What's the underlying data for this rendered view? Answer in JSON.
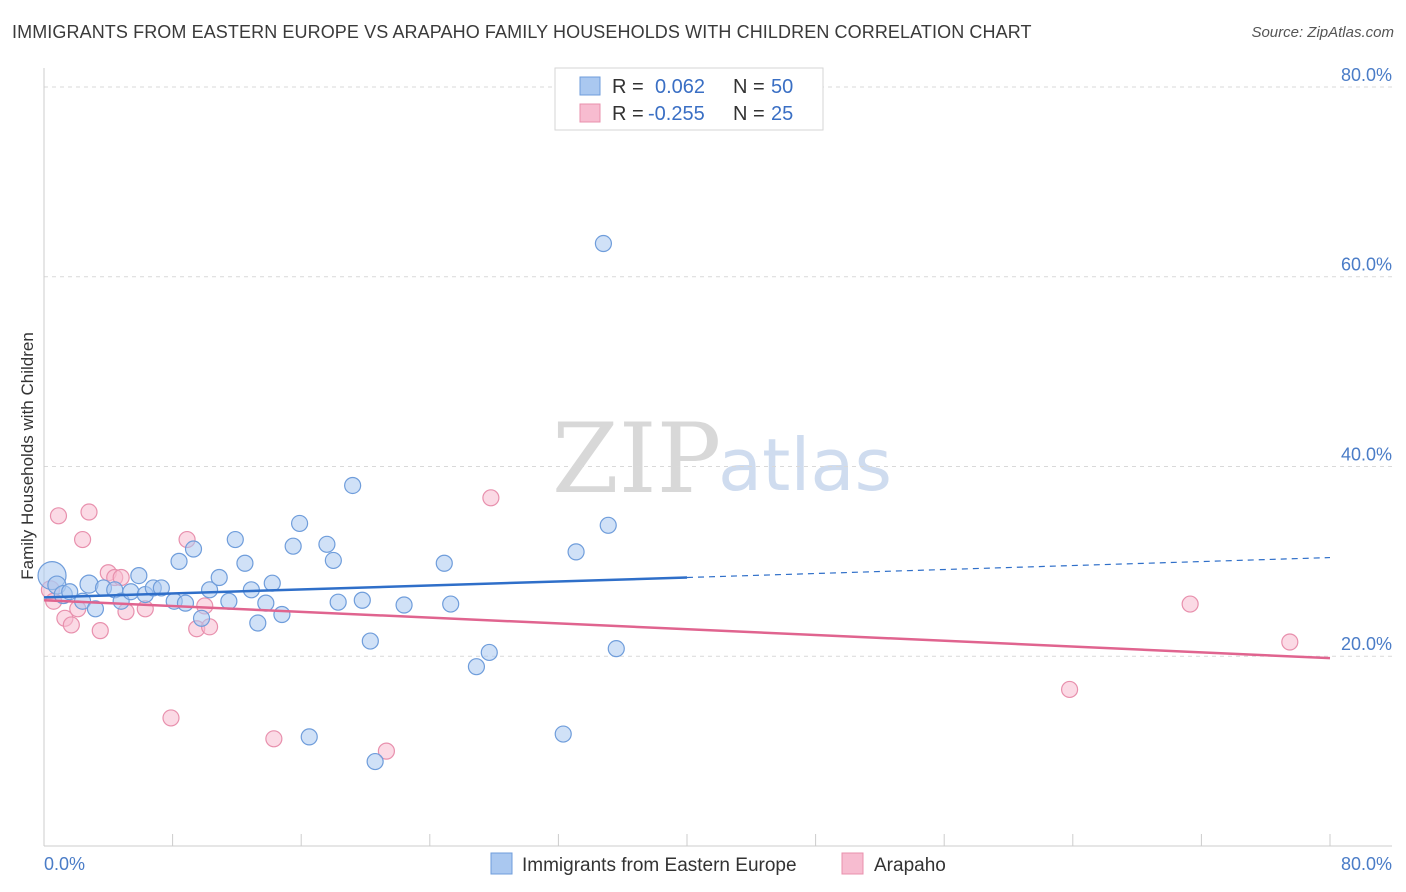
{
  "title": "IMMIGRANTS FROM EASTERN EUROPE VS ARAPAHO FAMILY HOUSEHOLDS WITH CHILDREN CORRELATION CHART",
  "source": "Source: ZipAtlas.com",
  "watermark": {
    "zip": "ZIP",
    "atlas": "atlas"
  },
  "colors": {
    "blue_fill": "#aac8f0",
    "blue_stroke": "#6f9ddb",
    "blue_line": "#2f6fc9",
    "pink_fill": "#f7bcd0",
    "pink_stroke": "#e890ad",
    "pink_line": "#e0648f",
    "grid": "#d9d9d9",
    "tick_text": "#4a7cc7"
  },
  "legend": {
    "rows": [
      {
        "r_label": "R = ",
        "r_value": "0.062",
        "n_label": "N = ",
        "n_value": "50"
      },
      {
        "r_label": "R = ",
        "r_value": "-0.255",
        "n_label": "N = ",
        "n_value": "25"
      }
    ]
  },
  "chart_data": {
    "type": "scatter",
    "title": "IMMIGRANTS FROM EASTERN EUROPE VS ARAPAHO FAMILY HOUSEHOLDS WITH CHILDREN CORRELATION CHART",
    "xlabel": "",
    "ylabel": "Family Households with Children",
    "xlim": [
      0,
      80
    ],
    "ylim": [
      0,
      82
    ],
    "x_tick_labels": [
      "0.0%",
      "80.0%"
    ],
    "y_ticks": [
      20,
      40,
      60,
      80
    ],
    "y_tick_labels": [
      "20.0%",
      "40.0%",
      "60.0%",
      "80.0%"
    ],
    "series": [
      {
        "name": "Immigrants from Eastern Europe",
        "color": "blue",
        "trend": {
          "x0": 0,
          "y0": 26.2,
          "x1": 40,
          "y1": 28.3,
          "dash_x1": 80,
          "dash_y1": 30.4
        },
        "points": [
          [
            0.5,
            28.5,
            14
          ],
          [
            0.8,
            27.5,
            9
          ],
          [
            1.2,
            26.5,
            9
          ],
          [
            1.6,
            26.8,
            8
          ],
          [
            2.4,
            25.8,
            8
          ],
          [
            2.8,
            27.6,
            9
          ],
          [
            3.2,
            25.0,
            8
          ],
          [
            3.7,
            27.2,
            8
          ],
          [
            4.4,
            27.0,
            8
          ],
          [
            4.8,
            25.8,
            8
          ],
          [
            5.4,
            26.8,
            8
          ],
          [
            5.9,
            28.5,
            8
          ],
          [
            6.3,
            26.5,
            8
          ],
          [
            6.8,
            27.2,
            8
          ],
          [
            7.3,
            27.2,
            8
          ],
          [
            8.1,
            25.8,
            8
          ],
          [
            8.4,
            30.0,
            8
          ],
          [
            8.8,
            25.6,
            8
          ],
          [
            9.3,
            31.3,
            8
          ],
          [
            9.8,
            24.0,
            8
          ],
          [
            10.3,
            27.0,
            8
          ],
          [
            10.9,
            28.3,
            8
          ],
          [
            11.5,
            25.8,
            8
          ],
          [
            11.9,
            32.3,
            8
          ],
          [
            12.5,
            29.8,
            8
          ],
          [
            12.9,
            27.0,
            8
          ],
          [
            13.3,
            23.5,
            8
          ],
          [
            13.8,
            25.6,
            8
          ],
          [
            14.2,
            27.7,
            8
          ],
          [
            14.8,
            24.4,
            8
          ],
          [
            15.5,
            31.6,
            8
          ],
          [
            15.9,
            34.0,
            8
          ],
          [
            16.5,
            11.5,
            8
          ],
          [
            17.6,
            31.8,
            8
          ],
          [
            18.0,
            30.1,
            8
          ],
          [
            18.3,
            25.7,
            8
          ],
          [
            19.2,
            38.0,
            8
          ],
          [
            19.8,
            25.9,
            8
          ],
          [
            20.3,
            21.6,
            8
          ],
          [
            20.6,
            8.9,
            8
          ],
          [
            22.4,
            25.4,
            8
          ],
          [
            24.9,
            29.8,
            8
          ],
          [
            25.3,
            25.5,
            8
          ],
          [
            26.9,
            18.9,
            8
          ],
          [
            27.7,
            20.4,
            8
          ],
          [
            32.3,
            11.8,
            8
          ],
          [
            33.1,
            31.0,
            8
          ],
          [
            34.8,
            63.5,
            8
          ],
          [
            35.1,
            33.8,
            8
          ],
          [
            35.6,
            20.8,
            8
          ]
        ]
      },
      {
        "name": "Arapaho",
        "color": "pink",
        "trend": {
          "x0": 0,
          "y0": 25.9,
          "x1": 80,
          "y1": 19.8
        },
        "points": [
          [
            0.4,
            27.0,
            9
          ],
          [
            0.6,
            25.8,
            8
          ],
          [
            0.9,
            34.8,
            8
          ],
          [
            1.3,
            24.0,
            8
          ],
          [
            1.7,
            23.3,
            8
          ],
          [
            2.1,
            25.0,
            8
          ],
          [
            2.4,
            32.3,
            8
          ],
          [
            2.8,
            35.2,
            8
          ],
          [
            3.5,
            22.7,
            8
          ],
          [
            4.0,
            28.8,
            8
          ],
          [
            4.4,
            28.3,
            8
          ],
          [
            4.8,
            28.3,
            8
          ],
          [
            5.1,
            24.7,
            8
          ],
          [
            6.3,
            25.0,
            8
          ],
          [
            7.9,
            13.5,
            8
          ],
          [
            8.9,
            32.3,
            8
          ],
          [
            9.5,
            22.9,
            8
          ],
          [
            10.0,
            25.3,
            8
          ],
          [
            10.3,
            23.1,
            8
          ],
          [
            14.3,
            11.3,
            8
          ],
          [
            21.3,
            10.0,
            8
          ],
          [
            27.8,
            36.7,
            8
          ],
          [
            63.8,
            16.5,
            8
          ],
          [
            71.3,
            25.5,
            8
          ],
          [
            77.5,
            21.5,
            8
          ]
        ]
      }
    ]
  }
}
